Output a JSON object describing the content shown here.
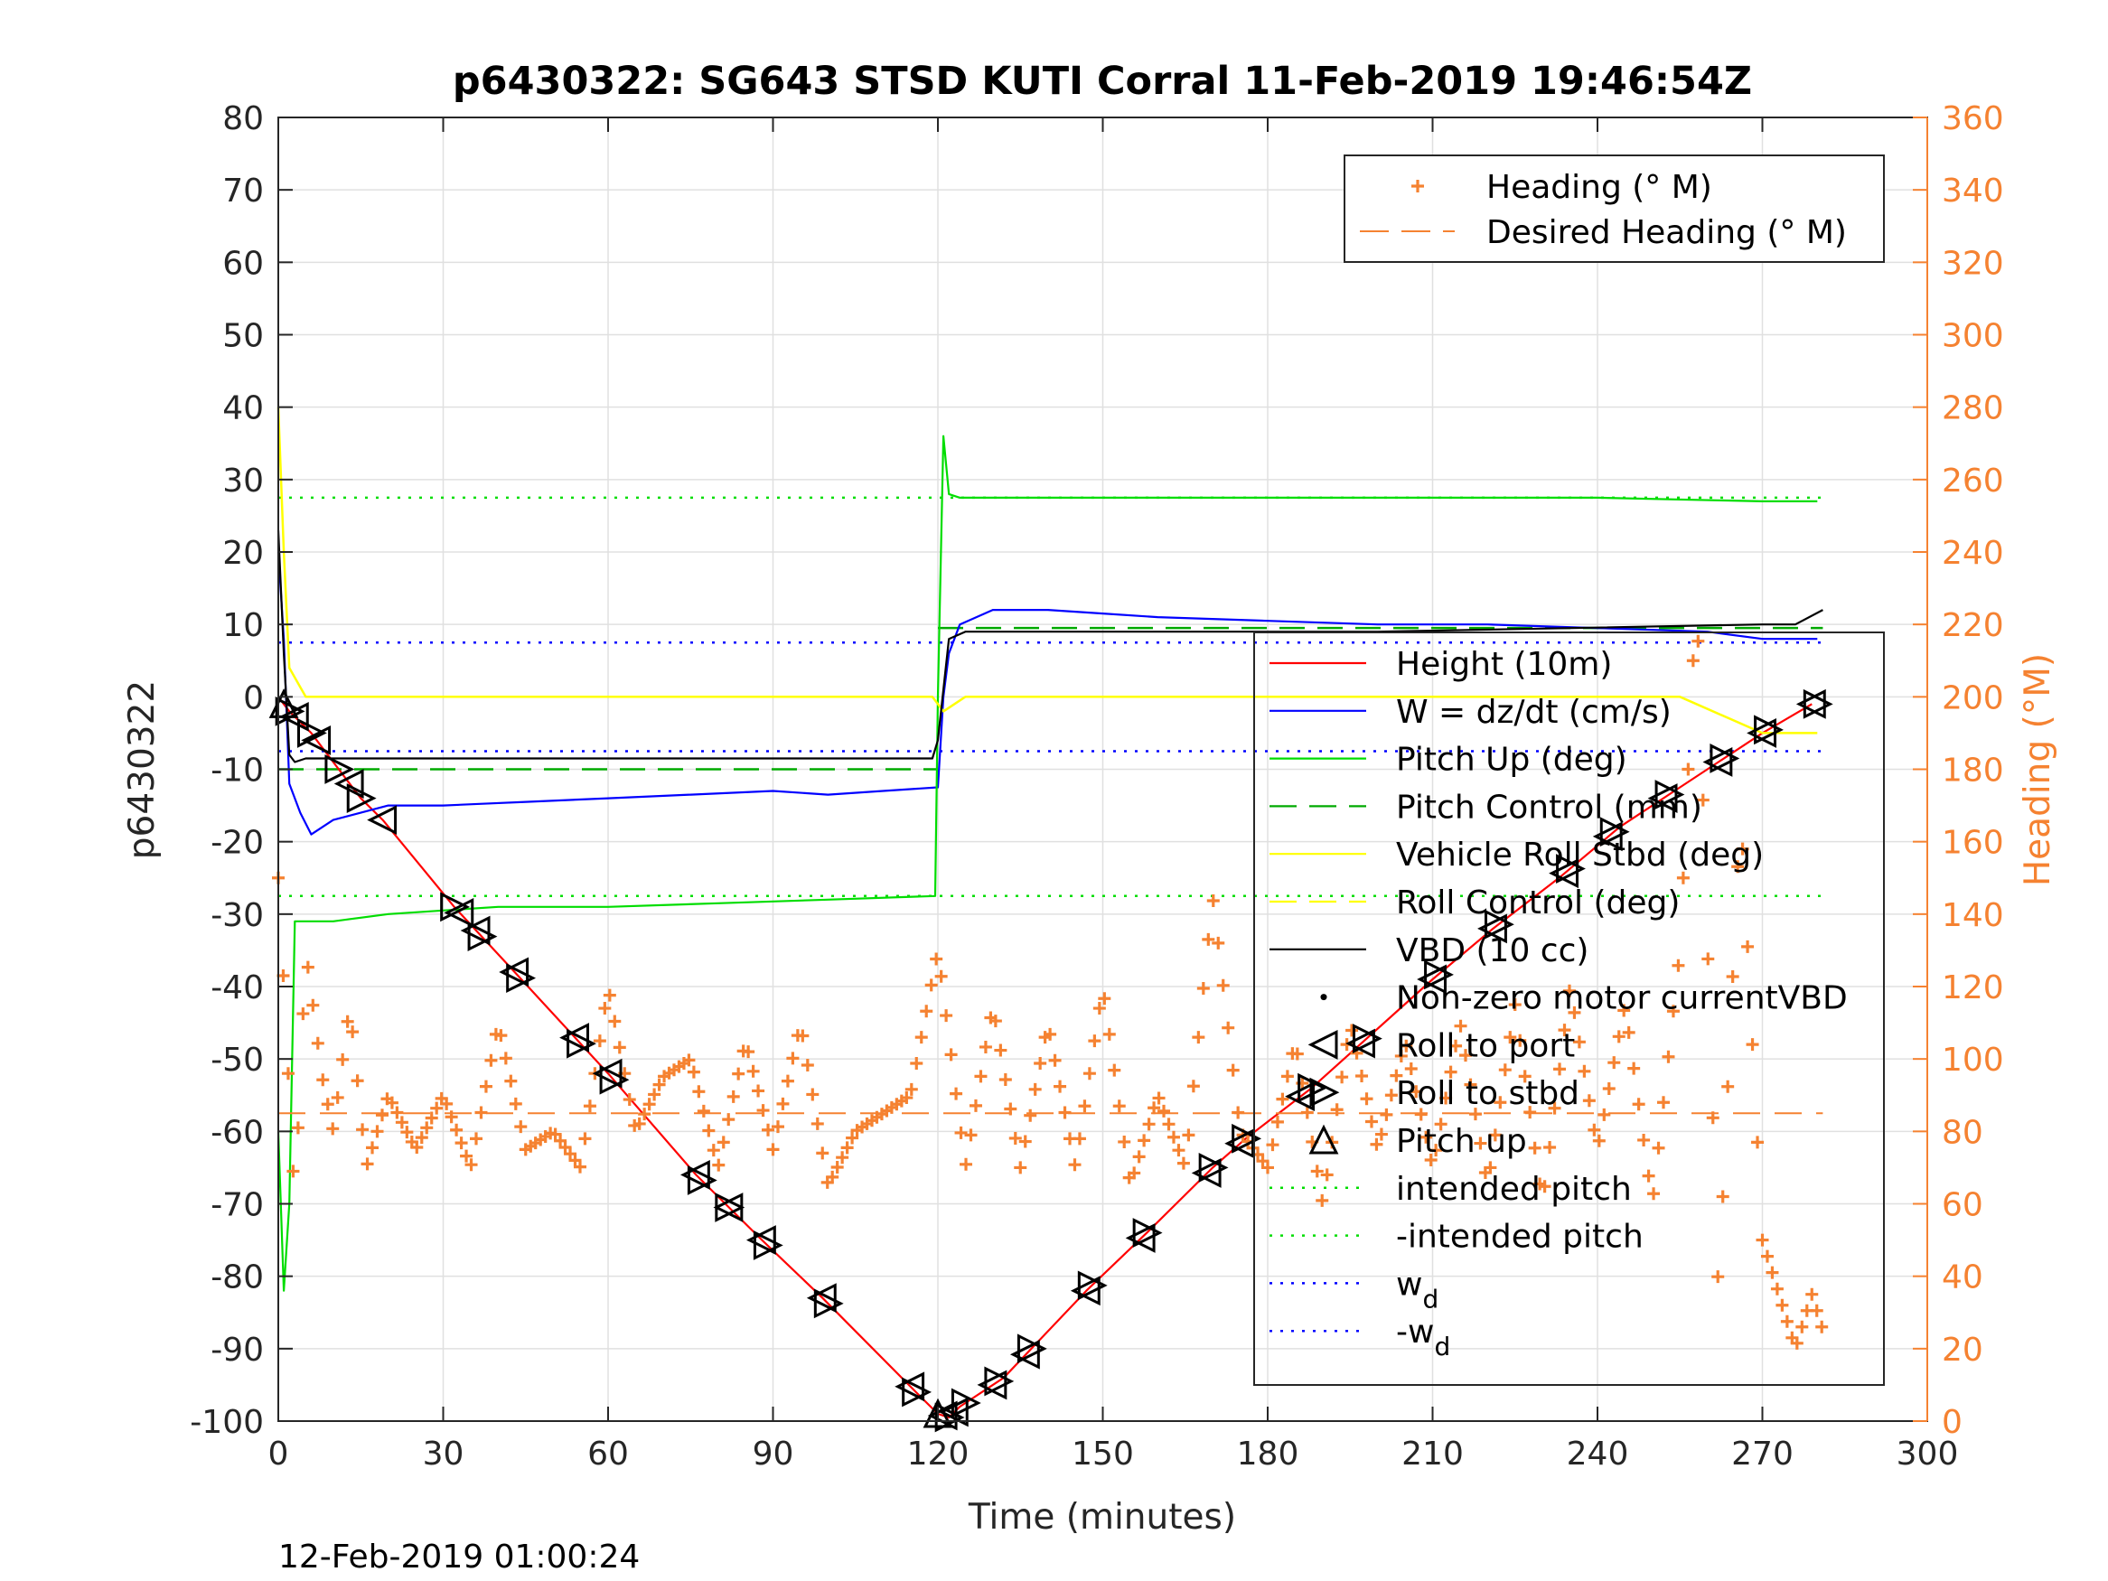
{
  "chart_data": {
    "type": "line",
    "title": "p6430322: SG643 STSD KUTI Corral 11-Feb-2019 19:46:54Z",
    "xlabel": "Time (minutes)",
    "ylabel": "p6430322",
    "ylabel_right": "Heading (°M)",
    "footer": "12-Feb-2019 01:00:24",
    "xlim": [
      0,
      300
    ],
    "ylim": [
      -100,
      80
    ],
    "ylim_right": [
      0,
      360
    ],
    "x_ticks": [
      "0",
      "30",
      "60",
      "90",
      "120",
      "150",
      "180",
      "210",
      "240",
      "270",
      "300"
    ],
    "y_ticks": [
      "80",
      "70",
      "60",
      "50",
      "40",
      "30",
      "20",
      "10",
      "0",
      "-10",
      "-20",
      "-30",
      "-40",
      "-50",
      "-60",
      "-70",
      "-80",
      "-90",
      "-100"
    ],
    "y_ticks_right": [
      "360",
      "340",
      "320",
      "300",
      "280",
      "260",
      "240",
      "220",
      "200",
      "180",
      "160",
      "140",
      "120",
      "100",
      "80",
      "60",
      "40",
      "20",
      "0"
    ],
    "grid": true,
    "colors": {
      "height": "#ff0000",
      "w": "#0000ff",
      "pitch": "#00dd00",
      "pitch_control": "#00aa00",
      "roll": "#ffff00",
      "vbd": "#000000",
      "heading": "#f58231"
    },
    "legend_heading": {
      "placement": "top-right",
      "entries": [
        {
          "label": "Heading (° M)",
          "marker": "plus",
          "color": "#f58231"
        },
        {
          "label": "Desired Heading (° M)",
          "marker": "dash",
          "color": "#f58231"
        }
      ]
    },
    "legend_main": {
      "placement": "right",
      "entries": [
        {
          "label": "Height (10m)",
          "marker": "line",
          "color": "#ff0000"
        },
        {
          "label": "W = dz/dt (cm/s)",
          "marker": "line",
          "color": "#0000ff"
        },
        {
          "label": "Pitch Up (deg)",
          "marker": "line",
          "color": "#00dd00"
        },
        {
          "label": "Pitch Control (mm)",
          "marker": "dash",
          "color": "#00aa00"
        },
        {
          "label": "Vehicle Roll Stbd (deg)",
          "marker": "line",
          "color": "#ffff00"
        },
        {
          "label": "Roll Control (deg)",
          "marker": "dash",
          "color": "#ffff00"
        },
        {
          "label": "VBD (10 cc)",
          "marker": "line",
          "color": "#000000"
        },
        {
          "label": "Non-zero motor currentVBD",
          "marker": "dot",
          "color": "#000000"
        },
        {
          "label": "Roll to port",
          "marker": "tri-left",
          "color": "#000000"
        },
        {
          "label": "Roll to stbd",
          "marker": "tri-right",
          "color": "#000000"
        },
        {
          "label": "Pitch up",
          "marker": "tri-up",
          "color": "#000000"
        },
        {
          "label": "intended pitch",
          "marker": "dotted",
          "color": "#00dd00"
        },
        {
          "label": "-intended pitch",
          "marker": "dotted",
          "color": "#00dd00"
        },
        {
          "label": "w",
          "subscript": "d",
          "marker": "dotted",
          "color": "#0000ff"
        },
        {
          "label": "-w",
          "subscript": "d",
          "marker": "dotted",
          "color": "#0000ff"
        }
      ]
    },
    "series": [
      {
        "name": "Height (10m)",
        "x": [
          0,
          2,
          6,
          10,
          15,
          19,
          32,
          43,
          60,
          76,
          88,
          99,
          116,
          120,
          122,
          124,
          132,
          147,
          158,
          170,
          176,
          188,
          210,
          221,
          233,
          244,
          254,
          262,
          270,
          279
        ],
        "y": [
          0,
          -2,
          -5,
          -9,
          -14,
          -17,
          -29,
          -38,
          -52,
          -66,
          -75,
          -83,
          -96,
          -99,
          -99.5,
          -98,
          -94,
          -82,
          -74,
          -65,
          -61,
          -54,
          -39,
          -32,
          -25,
          -18,
          -13,
          -9,
          -5,
          -1
        ]
      },
      {
        "name": "W = dz/dt (cm/s)",
        "x": [
          0,
          1,
          2,
          4,
          6,
          10,
          15,
          20,
          30,
          45,
          60,
          75,
          90,
          100,
          110,
          120,
          121,
          122,
          124,
          130,
          140,
          150,
          160,
          180,
          200,
          220,
          240,
          260,
          270,
          280
        ],
        "y": [
          20,
          8,
          -12,
          -16,
          -19,
          -17,
          -16,
          -15,
          -15,
          -14.5,
          -14,
          -13.5,
          -13,
          -13.5,
          -13,
          -12.5,
          0,
          6,
          10,
          12,
          12,
          11.5,
          11,
          10.5,
          10,
          10,
          9.5,
          9,
          8,
          8
        ]
      },
      {
        "name": "Pitch Up (deg)",
        "x": [
          0,
          1,
          2,
          3,
          5,
          10,
          20,
          40,
          60,
          80,
          100,
          119.5,
          120,
          121,
          122,
          124,
          140,
          160,
          200,
          240,
          270,
          280
        ],
        "y": [
          -60,
          -82,
          -70,
          -31,
          -31,
          -31,
          -30,
          -29,
          -29,
          -28.5,
          -28,
          -27.5,
          0,
          36,
          28,
          27.5,
          27.5,
          27.5,
          27.5,
          27.5,
          27,
          27
        ]
      },
      {
        "name": "Vehicle Roll Stbd (deg)",
        "x": [
          0,
          1,
          2,
          5,
          15,
          30,
          60,
          90,
          119,
          121,
          125,
          150,
          180,
          210,
          240,
          255,
          270,
          280
        ],
        "y": [
          40,
          20,
          4,
          0,
          0,
          0,
          0,
          0,
          0,
          -2,
          0,
          0,
          0,
          0,
          0,
          0,
          -5,
          -5
        ]
      },
      {
        "name": "VBD (10 cc)",
        "x": [
          0,
          1,
          2,
          3,
          5,
          60,
          100,
          119,
          120,
          122,
          125,
          200,
          270,
          276,
          281
        ],
        "y": [
          23,
          6,
          -8,
          -9,
          -8.5,
          -8.5,
          -8.5,
          -8.5,
          -6,
          8,
          9,
          9,
          10,
          10,
          12
        ]
      },
      {
        "name": "Heading (° M)",
        "axis": "right",
        "x": [
          0,
          3,
          5,
          8,
          10,
          13,
          16,
          20,
          25,
          30,
          35,
          40,
          45,
          50,
          55,
          60,
          65,
          70,
          75,
          80,
          85,
          90,
          95,
          100,
          105,
          110,
          115,
          120,
          125,
          130,
          135,
          140,
          145,
          150,
          155,
          160,
          165,
          170,
          175,
          180,
          185,
          190,
          195,
          200,
          205,
          210,
          215,
          220,
          225,
          230,
          235,
          240,
          245,
          250,
          255,
          258,
          262,
          266,
          270,
          273,
          276,
          279,
          281
        ],
        "y": [
          150,
          60,
          130,
          95,
          80,
          115,
          70,
          90,
          75,
          90,
          70,
          110,
          75,
          80,
          70,
          120,
          80,
          95,
          100,
          70,
          105,
          75,
          110,
          65,
          80,
          85,
          90,
          130,
          70,
          115,
          70,
          110,
          70,
          120,
          65,
          90,
          70,
          145,
          80,
          70,
          105,
          60,
          110,
          75,
          105,
          70,
          110,
          65,
          115,
          60,
          120,
          75,
          115,
          60,
          130,
          230,
          35,
          170,
          50,
          35,
          20,
          35,
          25
        ]
      },
      {
        "name": "Desired Heading (° M)",
        "axis": "right",
        "x": [
          0,
          281
        ],
        "y": [
          85,
          85
        ]
      }
    ],
    "reference_lines": [
      {
        "name": "intended pitch",
        "y": 27.5
      },
      {
        "name": "-intended pitch",
        "y": -27.5
      },
      {
        "name": "w_d",
        "y": 7.5
      },
      {
        "name": "-w_d",
        "y": -7.5
      },
      {
        "name": "Pitch Control (mm)",
        "y": -10,
        "x_end": 120
      },
      {
        "name": "Pitch Control (mm)",
        "y": 9.5,
        "x_start": 120
      }
    ],
    "markers": {
      "roll_to_port_x": [
        3,
        7,
        13,
        19,
        33,
        36,
        43,
        54,
        60,
        76,
        82,
        88,
        99,
        115,
        121,
        123,
        130,
        136,
        147,
        157,
        169,
        175,
        186,
        197,
        210,
        221,
        234,
        242,
        252,
        262,
        270,
        279
      ],
      "roll_to_stbd_x": [
        2,
        6,
        11,
        15,
        32,
        37,
        44,
        55,
        61,
        77,
        82,
        89,
        100,
        116,
        122,
        125,
        131,
        137,
        148,
        158,
        170,
        176,
        188,
        198,
        211,
        222,
        235,
        243,
        253,
        263,
        271,
        280
      ],
      "pitch_up_x": [
        1,
        120
      ]
    }
  }
}
